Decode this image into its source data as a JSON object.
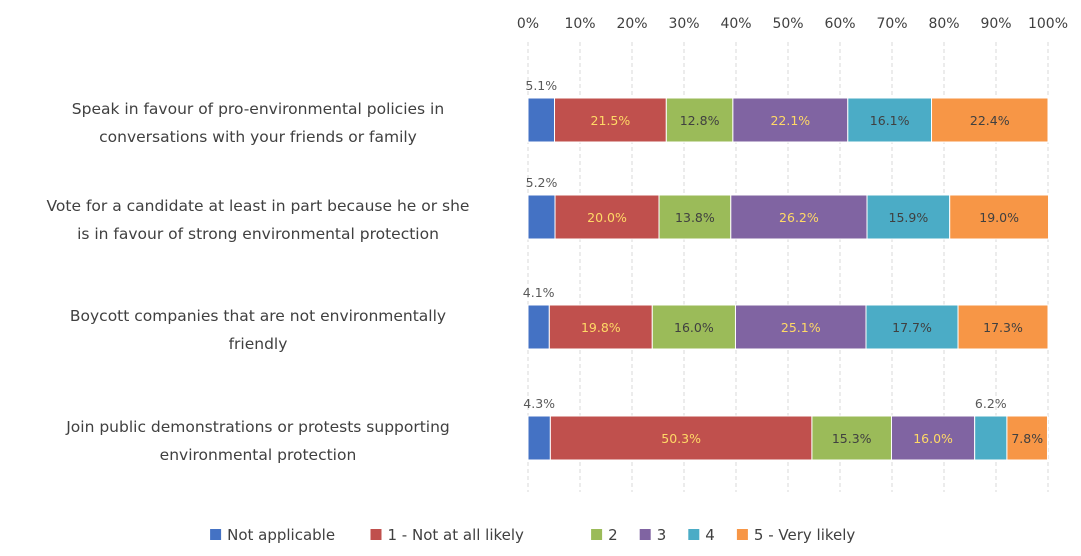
{
  "chart_data": {
    "type": "bar",
    "orientation": "horizontal",
    "stacked": true,
    "percent_stacked": true,
    "categories": [
      [
        "Speak in favour of pro-environmental policies in",
        "conversations with your friends or family"
      ],
      [
        "Vote for a candidate at least in part because he or she",
        "is in favour of strong environmental protection"
      ],
      [
        "Boycott companies that are not environmentally",
        "friendly"
      ],
      [
        "Join public demonstrations or protests supporting",
        "environmental protection"
      ]
    ],
    "series": [
      {
        "name": "Not applicable",
        "color": "#4472C4",
        "label_color": "#595959",
        "values": [
          5.1,
          5.2,
          4.1,
          4.3
        ],
        "labels": [
          "5.1%",
          "5.2%",
          "4.1%",
          "4.3%"
        ],
        "label_position": "above"
      },
      {
        "name": "1 - Not at all likely",
        "color": "#C0504D",
        "label_color": "#FFD966",
        "values": [
          21.5,
          20.0,
          19.8,
          50.3
        ],
        "labels": [
          "21.5%",
          "20.0%",
          "19.8%",
          "50.3%"
        ],
        "label_position": "center"
      },
      {
        "name": "2",
        "color": "#9BBB59",
        "label_color": "#404040",
        "values": [
          12.8,
          13.8,
          16.0,
          15.3
        ],
        "labels": [
          "12.8%",
          "13.8%",
          "16.0%",
          "15.3%"
        ],
        "label_position": "center"
      },
      {
        "name": "3",
        "color": "#8064A2",
        "label_color": "#FFD966",
        "values": [
          22.1,
          26.2,
          25.1,
          16.0
        ],
        "labels": [
          "22.1%",
          "26.2%",
          "25.1%",
          "16.0%"
        ],
        "label_position": "center"
      },
      {
        "name": "4",
        "color": "#4BACC6",
        "label_color": "#404040",
        "values": [
          16.1,
          15.9,
          17.7,
          6.2
        ],
        "labels": [
          "16.1%",
          "15.9%",
          "17.7%",
          "6.2%"
        ],
        "label_position": "center_or_above"
      },
      {
        "name": "5 - Very likely",
        "color": "#F79646",
        "label_color": "#404040",
        "values": [
          22.4,
          19.0,
          17.3,
          7.8
        ],
        "labels": [
          "22.4%",
          "19.0%",
          "17.3%",
          "7.8%"
        ],
        "label_position": "center"
      }
    ],
    "xlim": [
      0,
      100
    ],
    "x_ticks": [
      "0%",
      "10%",
      "20%",
      "30%",
      "40%",
      "50%",
      "60%",
      "70%",
      "80%",
      "90%",
      "100%"
    ],
    "x_axis_position": "top",
    "grid": "vertical-dashed",
    "legend_position": "bottom"
  }
}
